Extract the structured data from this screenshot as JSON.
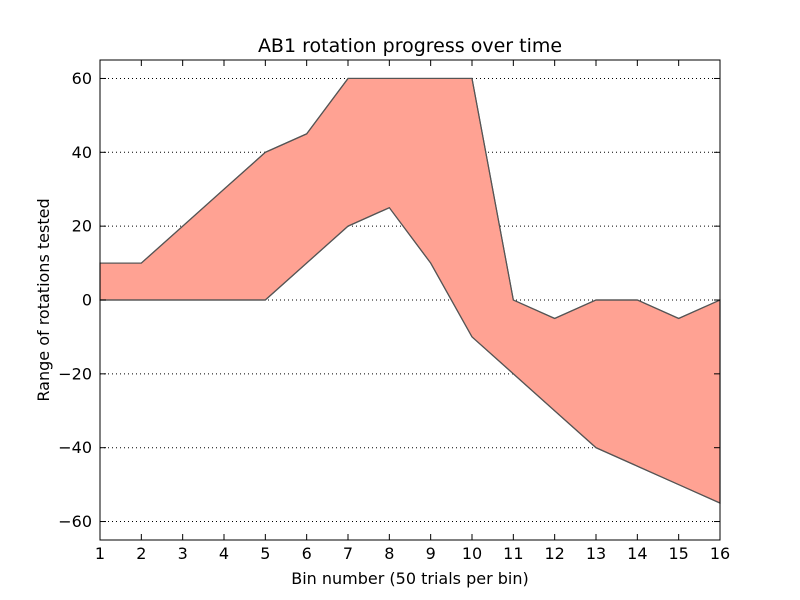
{
  "chart_data": {
    "type": "area",
    "title": "AB1 rotation progress over time",
    "xlabel": "Bin number (50 trials per bin)",
    "ylabel": "Range of rotations tested",
    "x": [
      1,
      2,
      3,
      4,
      5,
      6,
      7,
      8,
      9,
      10,
      11,
      12,
      13,
      14,
      15,
      16
    ],
    "upper": [
      10,
      10,
      20,
      30,
      40,
      45,
      60,
      60,
      60,
      60,
      0,
      -5,
      0,
      0,
      -5,
      0
    ],
    "lower": [
      0,
      0,
      0,
      0,
      0,
      10,
      20,
      25,
      10,
      -10,
      -20,
      -30,
      -40,
      -45,
      -50,
      -55
    ],
    "xlim": [
      1,
      16
    ],
    "ylim": [
      -65,
      65
    ],
    "xticks": [
      1,
      2,
      3,
      4,
      5,
      6,
      7,
      8,
      9,
      10,
      11,
      12,
      13,
      14,
      15,
      16
    ],
    "yticks": [
      -60,
      -40,
      -20,
      0,
      20,
      40,
      60
    ],
    "ytick_labels": [
      "−60",
      "−40",
      "−20",
      "0",
      "20",
      "40",
      "60"
    ],
    "grid": "horizontal dotted",
    "fill_color": "#ffa293",
    "edge_color": "#555555"
  }
}
